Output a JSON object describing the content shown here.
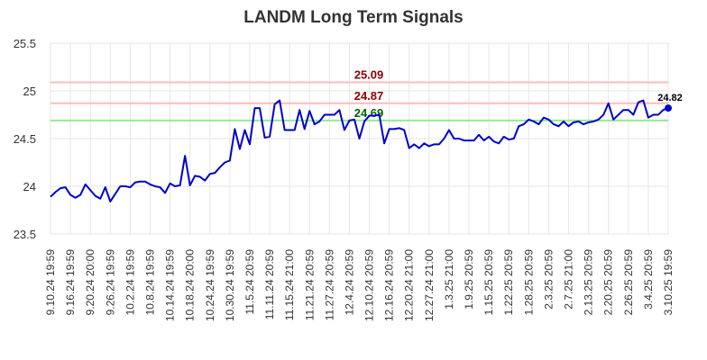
{
  "chart_data": {
    "type": "line",
    "title": "LANDM Long Term Signals",
    "xlabel": "",
    "ylabel": "",
    "ylim": [
      23.5,
      25.5
    ],
    "y_ticks": [
      23.5,
      24,
      24.5,
      25,
      25.5
    ],
    "y_tick_labels": [
      "23.5",
      "24",
      "24.5",
      "25",
      "25.5"
    ],
    "x_tick_labels": [
      "9.10.24 19:59",
      "9.16.24 19:59",
      "9.20.24 20:00",
      "9.26.24 19:59",
      "10.2.24 19:59",
      "10.8.24 19:59",
      "10.14.24 19:59",
      "10.18.24 20:00",
      "10.24.24 19:59",
      "10.30.24 19:59",
      "11.5.24 20:59",
      "11.11.24 20:59",
      "11.15.24 21:00",
      "11.21.24 20:59",
      "11.27.24 20:59",
      "12.4.24 20:59",
      "12.10.24 20:59",
      "12.16.24 20:59",
      "12.20.24 21:00",
      "12.27.24 21:00",
      "1.3.25 21:00",
      "1.9.25 20:59",
      "1.15.25 20:59",
      "1.22.25 20:59",
      "1.28.25 20:59",
      "2.3.25 20:59",
      "2.7.25 21:00",
      "2.13.25 20:59",
      "2.20.25 20:59",
      "2.26.25 20:59",
      "3.4.25 20:59",
      "3.10.25 19:59"
    ],
    "grid": true,
    "series": [
      {
        "color": "#0000cc",
        "values": [
          23.89,
          23.94,
          23.98,
          23.99,
          23.91,
          23.88,
          23.91,
          24.02,
          23.96,
          23.9,
          23.87,
          23.99,
          23.84,
          23.92,
          24.0,
          24.0,
          23.99,
          24.04,
          24.05,
          24.05,
          24.02,
          24.0,
          23.99,
          23.93,
          24.03,
          24.0,
          24.01,
          24.32,
          24.01,
          24.11,
          24.1,
          24.06,
          24.13,
          24.14,
          24.2,
          24.25,
          24.27,
          24.6,
          24.39,
          24.59,
          24.44,
          24.82,
          24.82,
          24.51,
          24.52,
          24.86,
          24.9,
          24.59,
          24.59,
          24.59,
          24.8,
          24.6,
          24.79,
          24.65,
          24.68,
          24.75,
          24.75,
          24.75,
          24.8,
          24.59,
          24.69,
          24.7,
          24.5,
          24.68,
          24.74,
          24.74,
          24.75,
          24.45,
          24.6,
          24.6,
          24.61,
          24.59,
          24.4,
          24.44,
          24.4,
          24.45,
          24.42,
          24.44,
          24.44,
          24.5,
          24.59,
          24.5,
          24.5,
          24.48,
          24.48,
          24.48,
          24.54,
          24.48,
          24.52,
          24.47,
          24.45,
          24.52,
          24.49,
          24.5,
          24.63,
          24.65,
          24.7,
          24.68,
          24.65,
          24.72,
          24.7,
          24.65,
          24.63,
          24.68,
          24.63,
          24.67,
          24.68,
          24.65,
          24.67,
          24.68,
          24.7,
          24.75,
          24.87,
          24.7,
          24.75,
          24.8,
          24.8,
          24.75,
          24.88,
          24.9,
          24.72,
          24.75,
          24.75,
          24.8,
          24.82
        ]
      }
    ],
    "last_value_label": "24.82",
    "levels": [
      {
        "value": 25.09,
        "label": "25.09",
        "line_color": "#ffbbbb",
        "text_color": "#8b0000"
      },
      {
        "value": 24.87,
        "label": "24.87",
        "line_color": "#ffbbbb",
        "text_color": "#8b0000"
      },
      {
        "value": 24.69,
        "label": "24.69",
        "line_color": "#90ee90",
        "text_color": "#006400"
      }
    ]
  }
}
